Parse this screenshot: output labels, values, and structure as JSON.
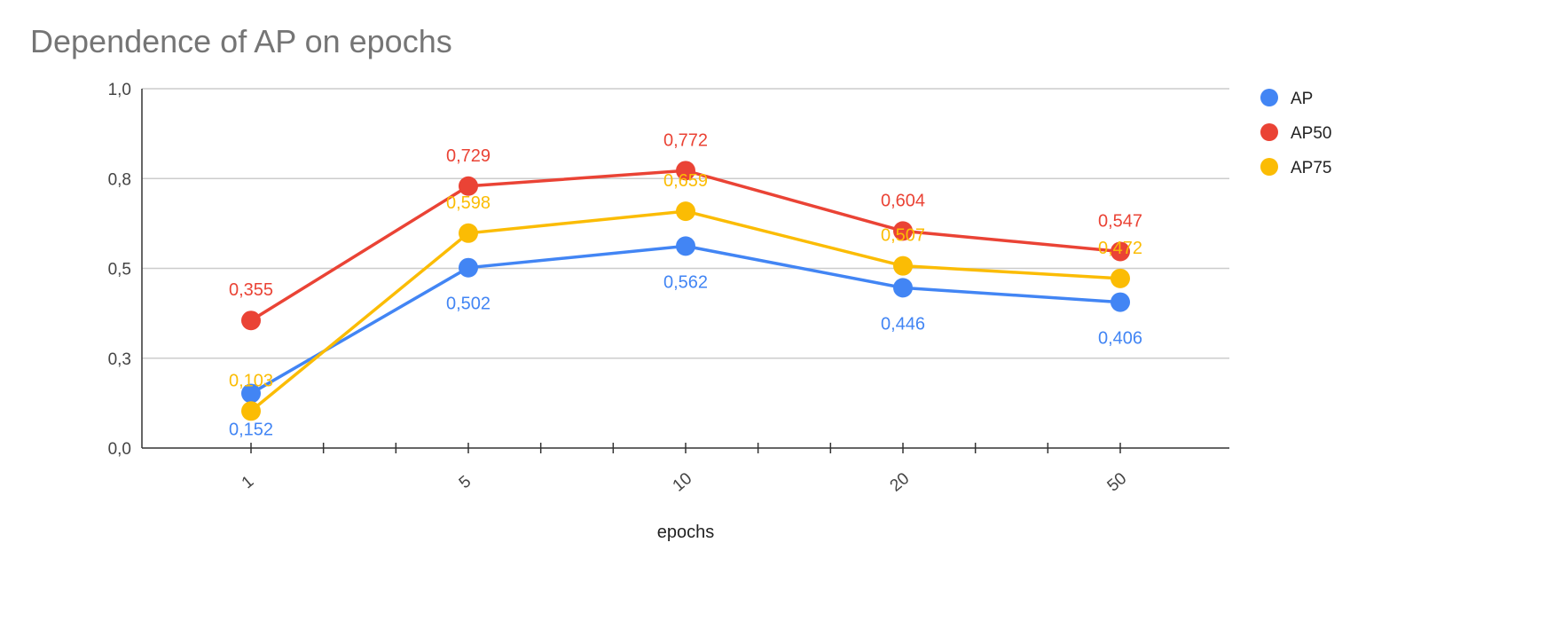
{
  "chart_data": {
    "type": "line",
    "title": "Dependence of AP on epochs",
    "xlabel": "epochs",
    "ylabel": "",
    "categories": [
      "1",
      "5",
      "10",
      "20",
      "50"
    ],
    "y_tick_labels": [
      "0,0",
      "0,3",
      "0,5",
      "0,8",
      "1,0"
    ],
    "y_tick_values": [
      0,
      0.25,
      0.5,
      0.75,
      1.0
    ],
    "ylim": [
      0,
      1.0
    ],
    "grid": true,
    "legend_position": "right",
    "series": [
      {
        "name": "AP",
        "color": "#4285f4",
        "values": [
          0.152,
          0.502,
          0.562,
          0.446,
          0.406
        ],
        "labels": [
          "0,152",
          "0,502",
          "0,562",
          "0,446",
          "0,406"
        ],
        "label_position": "below"
      },
      {
        "name": "AP50",
        "color": "#ea4335",
        "values": [
          0.355,
          0.729,
          0.772,
          0.604,
          0.547
        ],
        "labels": [
          "0,355",
          "0,729",
          "0,772",
          "0,604",
          "0,547"
        ],
        "label_position": "above"
      },
      {
        "name": "AP75",
        "color": "#fbbc04",
        "values": [
          0.103,
          0.598,
          0.659,
          0.507,
          0.472
        ],
        "labels": [
          "0,103",
          "0,598",
          "0,659",
          "0,507",
          "0,472"
        ],
        "label_position": "above"
      }
    ]
  }
}
